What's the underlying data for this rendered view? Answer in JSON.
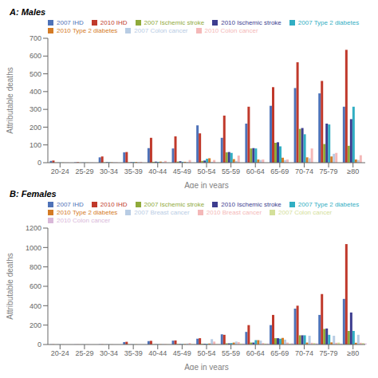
{
  "chart_data": [
    {
      "type": "bar",
      "title": "A: Males",
      "xlabel": "Age in years",
      "ylabel": "Attributable deaths",
      "categories": [
        "20-24",
        "25-29",
        "30-34",
        "35-39",
        "40-44",
        "45-49",
        "50-54",
        "55-59",
        "60-64",
        "65-69",
        "70-74",
        "75-79",
        "≥80"
      ],
      "series": [
        {
          "name": "2007 IHD",
          "color": "#4e72b8",
          "values": [
            10,
            2,
            30,
            58,
            82,
            80,
            210,
            140,
            220,
            320,
            420,
            390,
            315
          ]
        },
        {
          "name": "2010 IHD",
          "color": "#c0392b",
          "values": [
            12,
            3,
            35,
            60,
            140,
            148,
            165,
            265,
            315,
            425,
            565,
            460,
            635
          ]
        },
        {
          "name": "2007 Ischemic stroke",
          "color": "#8faa3a",
          "values": [
            1,
            1,
            2,
            2,
            5,
            6,
            10,
            58,
            80,
            112,
            190,
            105,
            95
          ]
        },
        {
          "name": "2010 Ischemic stroke",
          "color": "#3d3d8f",
          "values": [
            1,
            1,
            3,
            3,
            6,
            8,
            12,
            60,
            82,
            115,
            195,
            220,
            245
          ]
        },
        {
          "name": "2007 Type 2 diabetes",
          "color": "#31aec3",
          "values": [
            1,
            1,
            3,
            4,
            5,
            5,
            22,
            55,
            80,
            92,
            160,
            215,
            315
          ]
        },
        {
          "name": "2010 Type 2 diabetes",
          "color": "#d47b25",
          "values": [
            1,
            1,
            2,
            4,
            6,
            5,
            25,
            20,
            18,
            28,
            30,
            35,
            18
          ]
        },
        {
          "name": "2007 Colon cancer",
          "color": "#b8cce4",
          "values": [
            1,
            1,
            2,
            3,
            4,
            4,
            5,
            10,
            15,
            15,
            25,
            50,
            15
          ]
        },
        {
          "name": "2010 Colon cancer",
          "color": "#f4b8b8",
          "values": [
            1,
            1,
            2,
            5,
            10,
            15,
            15,
            40,
            18,
            18,
            80,
            55,
            42
          ]
        }
      ],
      "ylim": [
        0,
        700
      ],
      "yticks": [
        0,
        100,
        200,
        300,
        400,
        500,
        600,
        700
      ],
      "legend": "upper left",
      "grid": false
    },
    {
      "type": "bar",
      "title": "B: Females",
      "xlabel": "Age in years",
      "ylabel": "Attributable deaths",
      "categories": [
        "20-24",
        "25-29",
        "30-34",
        "35-39",
        "40-44",
        "45-49",
        "50-54",
        "55-59",
        "60-64",
        "65-69",
        "70-74",
        "75-79",
        "≥80"
      ],
      "series": [
        {
          "name": "2007 IHD",
          "color": "#4e72b8",
          "values": [
            2,
            1,
            2,
            25,
            35,
            40,
            60,
            105,
            130,
            200,
            370,
            305,
            470
          ]
        },
        {
          "name": "2010 IHD",
          "color": "#c0392b",
          "values": [
            2,
            1,
            2,
            28,
            38,
            42,
            65,
            100,
            200,
            305,
            400,
            520,
            1035
          ]
        },
        {
          "name": "2007 Ischemic stroke",
          "color": "#8faa3a",
          "values": [
            1,
            1,
            1,
            2,
            3,
            5,
            8,
            12,
            20,
            65,
            95,
            160,
            140
          ]
        },
        {
          "name": "2010 Ischemic stroke",
          "color": "#3d3d8f",
          "values": [
            1,
            1,
            1,
            2,
            3,
            5,
            8,
            12,
            20,
            65,
            95,
            165,
            330
          ]
        },
        {
          "name": "2007 Type 2 diabetes",
          "color": "#31aec3",
          "values": [
            1,
            1,
            1,
            2,
            3,
            5,
            8,
            15,
            45,
            60,
            95,
            100,
            140
          ]
        },
        {
          "name": "2010 Type 2 diabetes",
          "color": "#d47b25",
          "values": [
            1,
            1,
            1,
            2,
            3,
            5,
            10,
            20,
            45,
            68,
            20,
            22,
            18
          ]
        },
        {
          "name": "2007 Breast cancer",
          "color": "#b8cce4",
          "values": [
            1,
            1,
            1,
            2,
            5,
            10,
            55,
            30,
            40,
            50,
            90,
            90,
            100
          ]
        },
        {
          "name": "2010 Breast cancer",
          "color": "#f4b8b8",
          "values": [
            1,
            1,
            1,
            2,
            5,
            15,
            30,
            25,
            15,
            20,
            18,
            18,
            18
          ]
        },
        {
          "name": "2007 Colon cancer",
          "color": "#d4e09a",
          "values": [
            1,
            1,
            1,
            2,
            3,
            5,
            5,
            10,
            10,
            10,
            15,
            20,
            15
          ]
        },
        {
          "name": "2010 Colon cancer",
          "color": "#d9b8d9",
          "values": [
            1,
            1,
            1,
            2,
            3,
            5,
            5,
            10,
            10,
            12,
            12,
            10,
            10
          ]
        }
      ],
      "ylim": [
        0,
        1200
      ],
      "yticks": [
        0,
        200,
        400,
        600,
        800,
        1000,
        1200
      ],
      "legend": "upper left",
      "grid": false
    }
  ]
}
